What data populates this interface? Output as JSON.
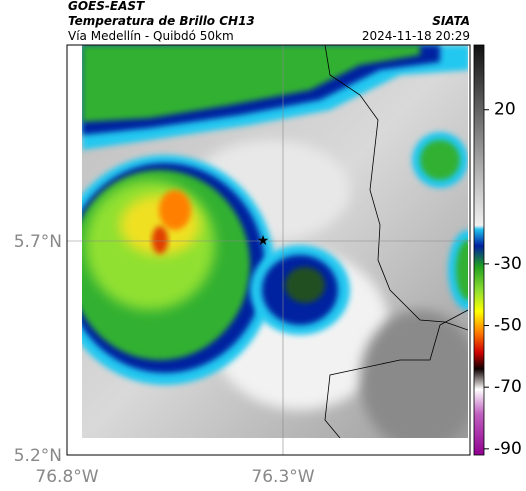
{
  "header": {
    "title": "GOES-EAST",
    "subtitle": "Temperatura de Brillo CH13",
    "route": "Vía Medellín - Quibdó 50km",
    "source": "SIATA",
    "timestamp": "2024-11-18 20:29"
  },
  "map": {
    "lat_ticks": [
      "5.7°N",
      "5.2°N"
    ],
    "lon_ticks": [
      "76.8°W",
      "76.3°W"
    ]
  },
  "colorbar": {
    "lim": [
      -92,
      41
    ],
    "ticks": [
      20,
      -30,
      -50,
      -70,
      -90
    ]
  }
}
